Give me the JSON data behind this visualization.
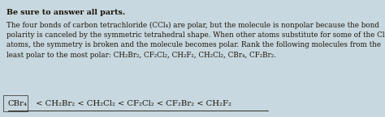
{
  "bg_color": "#c8d8e0",
  "header_text": "Be sure to answer all parts.",
  "body_text": "The four bonds of carbon tetrachloride (CCl₄) are polar, but the molecule is nonpolar because the bond\npolarity is canceled by the symmetric tetrahedral shape. When other atoms substitute for some of the Cl\natoms, the symmetry is broken and the molecule becomes polar. Rank the following molecules from the\nleast polar to the most polar: CH₂Br₂, CF₂Cl₂, CH₂F₂, CH₂Cl₂, CBr₄, CF₂Br₂.",
  "answer_box_label": "CBr₄",
  "answer_box_rest": "  < CH₂Br₂ < CH₂Cl₂ < CF₂Cl₂ < CF₂Br₂ < CH₂F₂",
  "box_color": "#dce8ec",
  "box_edge_color": "#555555",
  "text_color": "#1a1205",
  "header_fontsize": 6.8,
  "body_fontsize": 6.3,
  "answer_fontsize": 7.2,
  "figsize": [
    4.74,
    1.45
  ],
  "dpi": 100
}
